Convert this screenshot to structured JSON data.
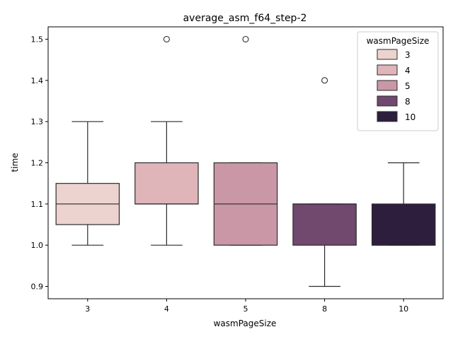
{
  "chart_data": {
    "type": "box",
    "title": "average_asm_f64_step-2",
    "xlabel": "wasmPageSize",
    "ylabel": "time",
    "ylim": [
      0.87,
      1.53
    ],
    "yticks": [
      0.9,
      1.0,
      1.1,
      1.2,
      1.3,
      1.4,
      1.5
    ],
    "ytick_labels": [
      "0.9",
      "1.0",
      "1.1",
      "1.2",
      "1.3",
      "1.4",
      "1.5"
    ],
    "grid": false,
    "legend": {
      "title": "wasmPageSize",
      "position": "top-right"
    },
    "categories": [
      "3",
      "4",
      "5",
      "8",
      "10"
    ],
    "series": [
      {
        "name": "3",
        "color": "#ecd3cf",
        "whisker_low": 1.0,
        "q1": 1.05,
        "median": 1.1,
        "q3": 1.15,
        "whisker_high": 1.3,
        "outliers": []
      },
      {
        "name": "4",
        "color": "#dfb5ba",
        "whisker_low": 1.0,
        "q1": 1.1,
        "median": 1.1,
        "q3": 1.2,
        "whisker_high": 1.3,
        "outliers": [
          1.5
        ]
      },
      {
        "name": "5",
        "color": "#c997a6",
        "whisker_low": 1.0,
        "q1": 1.0,
        "median": 1.1,
        "q3": 1.2,
        "whisker_high": 1.2,
        "outliers": [
          1.5
        ]
      },
      {
        "name": "8",
        "color": "#71486e",
        "whisker_low": 0.9,
        "q1": 1.0,
        "median": 1.1,
        "q3": 1.1,
        "whisker_high": 1.1,
        "outliers": [
          1.4
        ]
      },
      {
        "name": "10",
        "color": "#2d1e3e",
        "whisker_low": 1.0,
        "q1": 1.0,
        "median": 1.0,
        "q3": 1.1,
        "whisker_high": 1.2,
        "outliers": []
      }
    ]
  }
}
